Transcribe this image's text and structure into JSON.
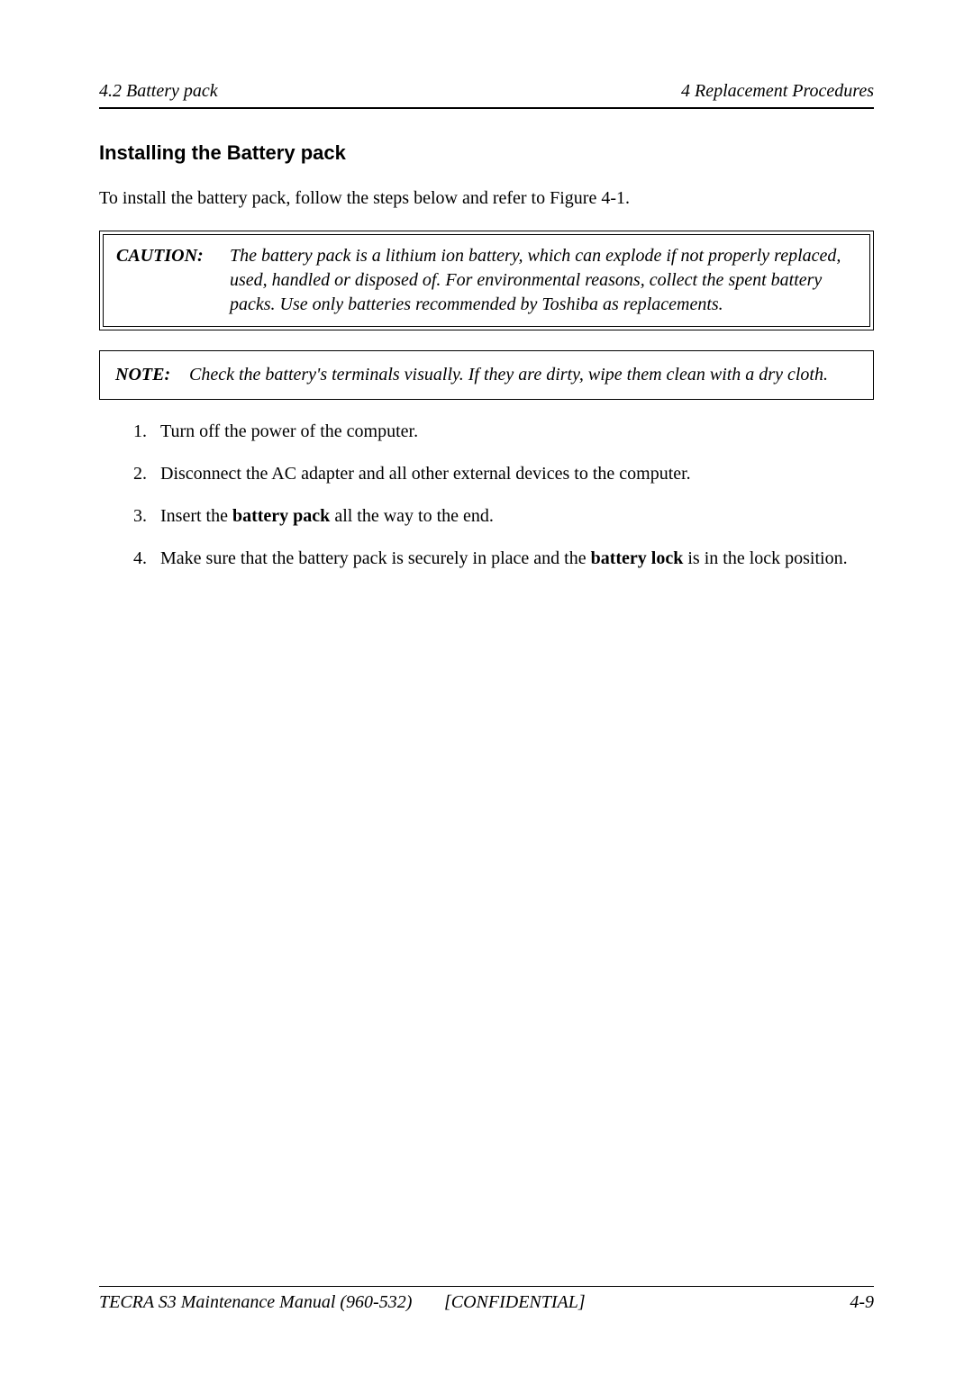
{
  "header": {
    "left": "4.2  Battery pack",
    "right": "4 Replacement Procedures"
  },
  "section_heading": "Installing the Battery pack",
  "intro": "To install the battery pack, follow the steps below and refer to Figure 4-1.",
  "caution": {
    "label": "CAUTION:",
    "text": "The battery pack is a lithium ion battery, which can explode if not properly replaced, used, handled or disposed of. For environmental reasons, collect the spent battery packs. Use only batteries recommended by Toshiba as replacements."
  },
  "note": {
    "label": "NOTE:",
    "text": "Check the battery's terminals visually. If they are dirty, wipe them clean with a dry cloth."
  },
  "steps": {
    "s1": "Turn off the power of the computer.",
    "s2": "Disconnect the AC adapter and all other external devices to the computer.",
    "s3_pre": "Insert the ",
    "s3_bold": "battery pack",
    "s3_post": " all the way to the end.",
    "s4_pre": "Make sure that the battery pack is securely in place and the ",
    "s4_bold": "battery lock",
    "s4_post": " is in the lock position."
  },
  "footer": {
    "left": "TECRA S3 Maintenance Manual (960-532)",
    "center": "[CONFIDENTIAL]",
    "right": "4-9"
  }
}
